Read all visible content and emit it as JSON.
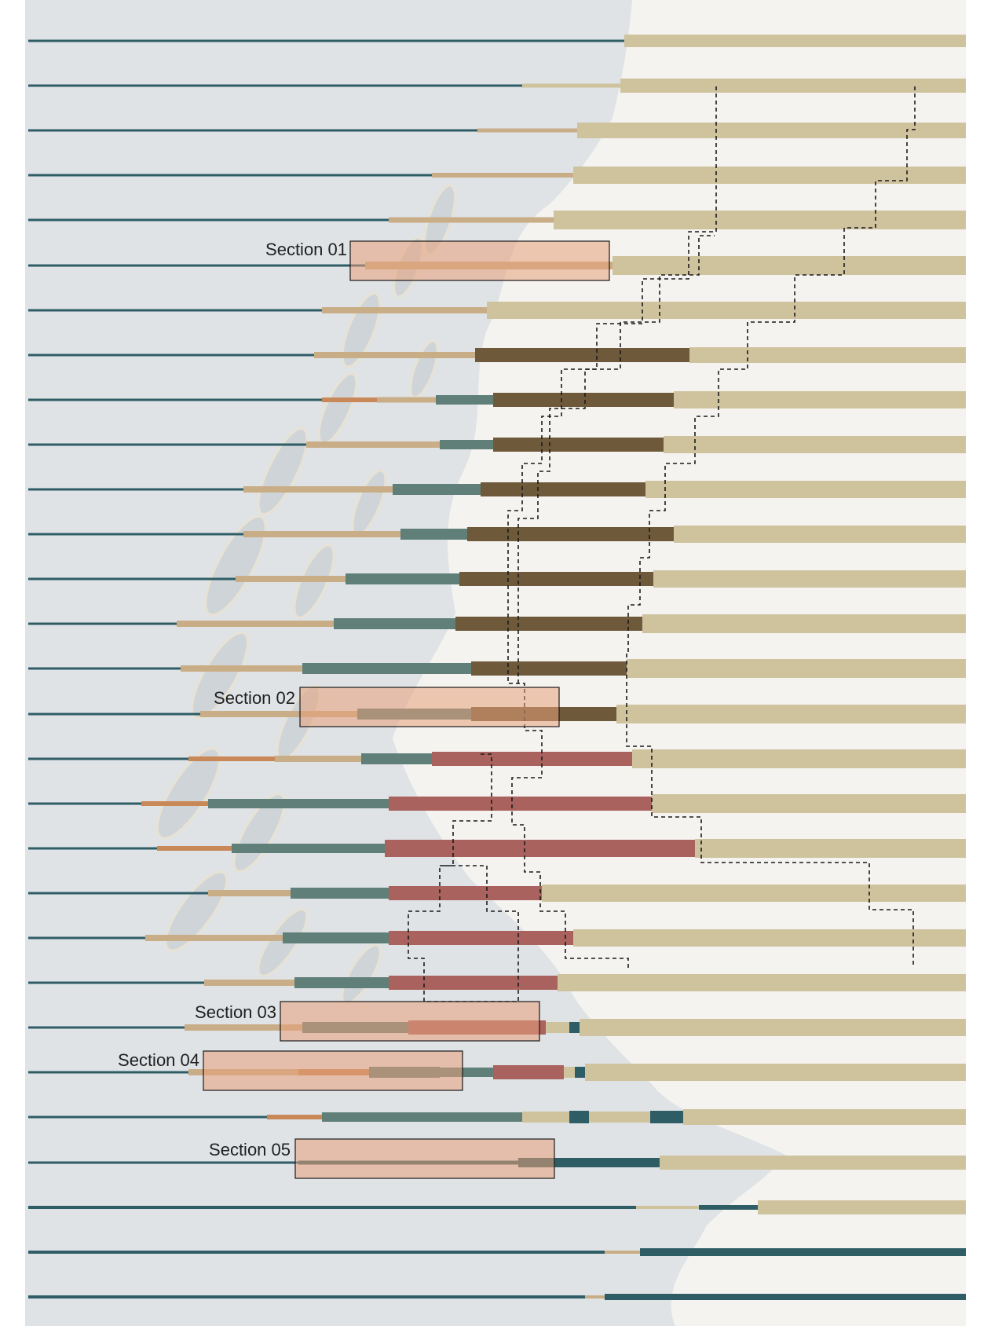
{
  "diagram": {
    "title": "",
    "colors": {
      "sea": "#dfe3e6",
      "land": "#f4f3f0",
      "water_line": "#2f5d66",
      "sand": "#cfc39e",
      "tan": "#c9ad86",
      "orange": "#c88858",
      "teal": "#5f7f78",
      "brown": "#6e5a3a",
      "red": "#a9625d",
      "box": "#e8a07a"
    },
    "section_labels": [
      {
        "id": "s01",
        "label": "Section 01"
      },
      {
        "id": "s02",
        "label": "Section 02"
      },
      {
        "id": "s03",
        "label": "Section 03"
      },
      {
        "id": "s04",
        "label": "Section 04"
      },
      {
        "id": "s05",
        "label": "Section 05"
      }
    ]
  }
}
